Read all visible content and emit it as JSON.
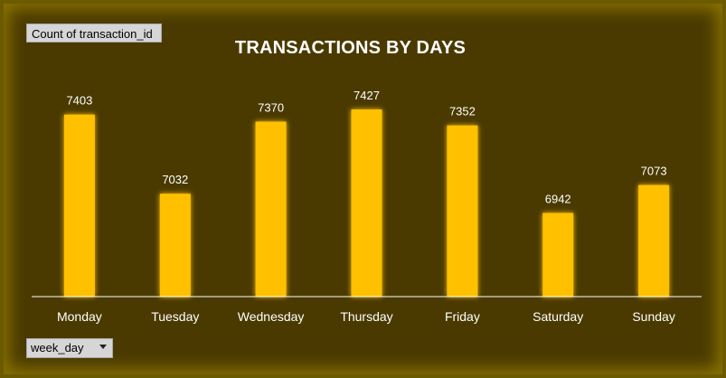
{
  "field_button": {
    "label": "Count of transaction_id"
  },
  "axis_button": {
    "label": "week_day"
  },
  "colors": {
    "bar": "#FFC000",
    "glow": "#FFE066",
    "background": "#4A3A00",
    "axis": "#FFFFFF"
  },
  "chart_data": {
    "type": "bar",
    "title": "TRANSACTIONS BY DAYS",
    "categories": [
      "Monday",
      "Tuesday",
      "Wednesday",
      "Thursday",
      "Friday",
      "Saturday",
      "Sunday"
    ],
    "values": [
      7403,
      7032,
      7370,
      7427,
      7352,
      6942,
      7073
    ],
    "xlabel": "",
    "ylabel": "",
    "ylim": [
      6550,
      7550
    ],
    "grid": false,
    "data_labels": true,
    "legend": "none"
  }
}
